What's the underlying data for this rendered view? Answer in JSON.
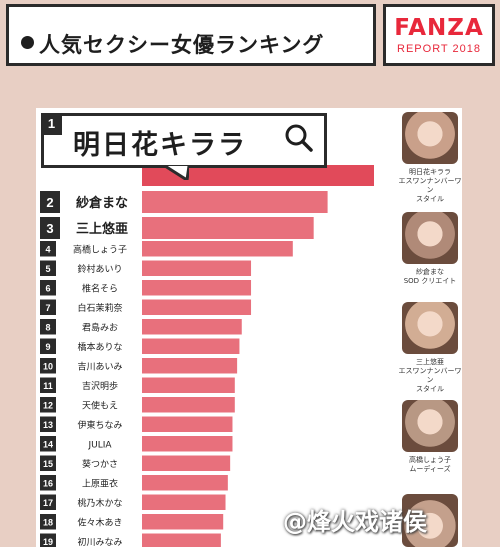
{
  "header": {
    "title": "人気セクシー女優ランキング",
    "brand_logo": "FANZA",
    "brand_sub": "REPORT 2018"
  },
  "top": {
    "rank": "1",
    "name": "明日花キララ"
  },
  "colors": {
    "bar_top": "#e14a5a",
    "bar": "#e8707c",
    "label_bg": "#ffffff",
    "rank_bg": "#2b2b2b",
    "page_bg": "#e8cfc4"
  },
  "chart_data": {
    "type": "bar",
    "orientation": "horizontal",
    "categories": [
      "明日花キララ",
      "紗倉まな",
      "三上悠亜",
      "高橋しょう子",
      "鈴村あいり",
      "椎名そら",
      "白石茉莉奈",
      "君島みお",
      "橋本ありな",
      "吉川あいみ",
      "吉沢明歩",
      "天使もえ",
      "伊東ちなみ",
      "JULIA",
      "葵つかさ",
      "上原亜衣",
      "桃乃木かな",
      "佐々木あき",
      "初川みなみ"
    ],
    "ranks": [
      "1",
      "2",
      "3",
      "4",
      "5",
      "6",
      "7",
      "8",
      "9",
      "10",
      "11",
      "12",
      "13",
      "14",
      "15",
      "16",
      "17",
      "18",
      "19"
    ],
    "values": [
      100,
      80,
      74,
      65,
      47,
      47,
      47,
      43,
      42,
      41,
      40,
      40,
      39,
      39,
      38,
      37,
      36,
      35,
      34
    ],
    "xlim": [
      0,
      100
    ]
  },
  "photos": [
    {
      "name": "明日花キララ",
      "label": "エスワンナンバーワン\nスタイル"
    },
    {
      "name": "紗倉まな",
      "label": "SOD クリエイト"
    },
    {
      "name": "三上悠亜",
      "label": "エスワンナンバーワン\nスタイル"
    },
    {
      "name": "高橋しょう子",
      "label": "ムーディーズ"
    }
  ],
  "watermark": "@烽火戏诸侯"
}
